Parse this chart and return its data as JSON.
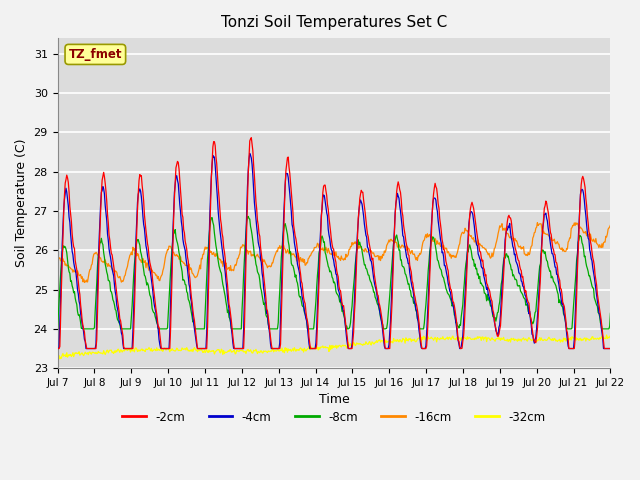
{
  "title": "Tonzi Soil Temperatures Set C",
  "xlabel": "Time",
  "ylabel": "Soil Temperature (C)",
  "ylim": [
    23.0,
    31.4
  ],
  "yticks": [
    23.0,
    24.0,
    25.0,
    26.0,
    27.0,
    28.0,
    29.0,
    30.0,
    31.0
  ],
  "x_start_day": 7,
  "x_end_day": 22,
  "x_tick_days": [
    7,
    8,
    9,
    10,
    11,
    12,
    13,
    14,
    15,
    16,
    17,
    18,
    19,
    20,
    21,
    22
  ],
  "annotation_text": "TZ_fmet",
  "colors": {
    "-2cm": "#FF0000",
    "-4cm": "#0000CC",
    "-8cm": "#00AA00",
    "-16cm": "#FF8800",
    "-32cm": "#FFFF00"
  },
  "legend_labels": [
    "-2cm",
    "-4cm",
    "-8cm",
    "-16cm",
    "-32cm"
  ],
  "background_color": "#E8E8E8",
  "plot_bg_color": "#DCDCDC",
  "grid_color": "#FFFFFF",
  "n_points": 720
}
